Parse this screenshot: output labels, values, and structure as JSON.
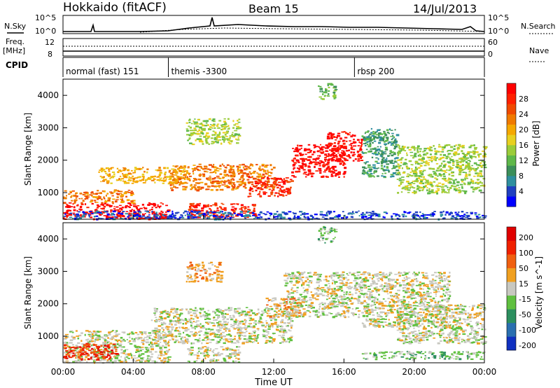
{
  "header": {
    "station": "Hokkaido (fitACF)",
    "beam": "Beam 15",
    "date": "14/Jul/2013"
  },
  "top_panels": {
    "nsky_label": "N.Sky",
    "nsky_ticks": [
      "10^5",
      "10^0"
    ],
    "nsearch_label": "N.Search",
    "nsearch_ticks": [
      "10^5",
      "10^0"
    ],
    "freq_label": "Freq.",
    "freq_unit": "[MHz]",
    "freq_ticks": [
      "12",
      "8"
    ],
    "nave_label": "Nave",
    "nave_ticks": [
      "60",
      "0"
    ],
    "cpid_label": "CPID",
    "cpid_segments": [
      {
        "label": "normal (fast) 151",
        "start_hour": 0
      },
      {
        "label": "themis -3300",
        "start_hour": 6.0
      },
      {
        "label": "rbsp 200",
        "start_hour": 16.6
      }
    ]
  },
  "chart_data": [
    {
      "type": "heatmap",
      "name": "Power",
      "ylabel": "Slant Range [km]",
      "yticks": [
        1000,
        2000,
        3000,
        4000
      ],
      "ylim": [
        180,
        4500
      ],
      "xlim_hours": [
        0,
        24
      ],
      "colorbar_label": "Power [dB]",
      "colorbar_ticks": [
        "4",
        "8",
        "12",
        "16",
        "20",
        "24",
        "28"
      ],
      "colorbar_colors": [
        "#0000ff",
        "#2040c0",
        "#2f8f9f",
        "#3c8f5a",
        "#5fb84a",
        "#9bcc3a",
        "#e8d020",
        "#f5a800",
        "#f07a00",
        "#f04a00",
        "#ff2000",
        "#ff0000"
      ],
      "regions": [
        {
          "x": [
            0,
            6
          ],
          "y": [
            200,
            700
          ],
          "level": 11
        },
        {
          "x": [
            0,
            4
          ],
          "y": [
            700,
            1100
          ],
          "level": 8
        },
        {
          "x": [
            2,
            7
          ],
          "y": [
            1300,
            1800
          ],
          "level": 7
        },
        {
          "x": [
            6,
            12
          ],
          "y": [
            1100,
            1900
          ],
          "level": 8
        },
        {
          "x": [
            7,
            11
          ],
          "y": [
            250,
            700
          ],
          "level": 10
        },
        {
          "x": [
            10.5,
            13
          ],
          "y": [
            900,
            1500
          ],
          "level": 10
        },
        {
          "x": [
            13,
            16
          ],
          "y": [
            1500,
            2500
          ],
          "level": 11
        },
        {
          "x": [
            15,
            17
          ],
          "y": [
            2000,
            2900
          ],
          "level": 11
        },
        {
          "x": [
            17,
            19
          ],
          "y": [
            1500,
            3000
          ],
          "level": 3
        },
        {
          "x": [
            19,
            24
          ],
          "y": [
            1000,
            2500
          ],
          "level": 5
        },
        {
          "x": [
            0,
            24
          ],
          "y": [
            200,
            450
          ],
          "level": 1
        },
        {
          "x": [
            14.5,
            15.5
          ],
          "y": [
            3900,
            4400
          ],
          "level": 4
        },
        {
          "x": [
            7,
            10
          ],
          "y": [
            2500,
            3300
          ],
          "level": 5
        }
      ]
    },
    {
      "type": "heatmap",
      "name": "Velocity",
      "ylabel": "Slant Range [km]",
      "yticks": [
        1000,
        2000,
        3000,
        4000
      ],
      "ylim": [
        180,
        4500
      ],
      "xlim_hours": [
        0,
        24
      ],
      "colorbar_label": "Velocity [m s^-1]",
      "colorbar_ticks": [
        "200",
        "100",
        "50",
        "15",
        "-15",
        "-50",
        "-100",
        "-200"
      ],
      "colorbar_colors": [
        "#1030c0",
        "#2a6fb0",
        "#2c8f5f",
        "#60c040",
        "#c8c8c0",
        "#f0a020",
        "#f06010",
        "#f02000",
        "#e00000"
      ],
      "regions": [
        {
          "x": [
            0,
            6
          ],
          "y": [
            200,
            1200
          ],
          "level": 4
        },
        {
          "x": [
            5,
            13
          ],
          "y": [
            800,
            1900
          ],
          "level": 4
        },
        {
          "x": [
            7,
            10
          ],
          "y": [
            200,
            700
          ],
          "level": 4
        },
        {
          "x": [
            12.5,
            17
          ],
          "y": [
            1600,
            3000
          ],
          "level": 4
        },
        {
          "x": [
            17,
            22
          ],
          "y": [
            1300,
            3000
          ],
          "level": 4
        },
        {
          "x": [
            19,
            24
          ],
          "y": [
            800,
            2000
          ],
          "level": 4
        },
        {
          "x": [
            11.5,
            13.5
          ],
          "y": [
            1600,
            2200
          ],
          "level": 5
        },
        {
          "x": [
            7,
            9
          ],
          "y": [
            2700,
            3300
          ],
          "level": 5
        },
        {
          "x": [
            17,
            24
          ],
          "y": [
            300,
            550
          ],
          "level": 3
        },
        {
          "x": [
            14.5,
            15.5
          ],
          "y": [
            3900,
            4400
          ],
          "level": 3
        },
        {
          "x": [
            0,
            3
          ],
          "y": [
            300,
            800
          ],
          "level": 7
        }
      ]
    }
  ],
  "xaxis": {
    "ticks": [
      "00:00",
      "04:00",
      "08:00",
      "12:00",
      "16:00",
      "20:00",
      "00:00"
    ],
    "label": "Time UT"
  }
}
